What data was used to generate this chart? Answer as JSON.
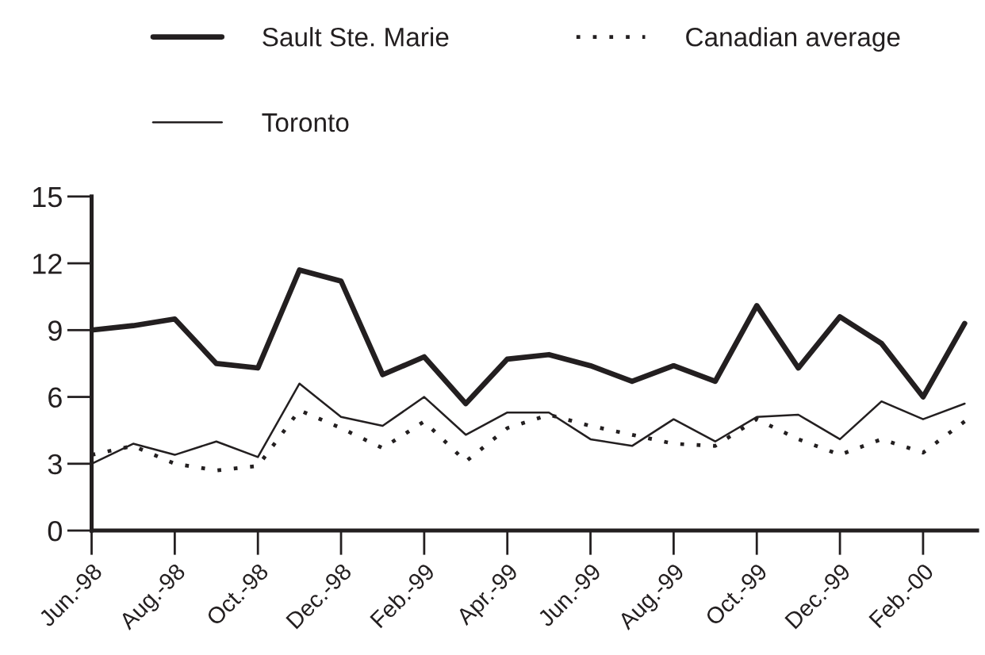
{
  "chart_data": {
    "type": "line",
    "categories": [
      "Jun.-98",
      null,
      "Aug.-98",
      null,
      "Oct.-98",
      null,
      "Dec.-98",
      null,
      "Feb.-99",
      null,
      "Apr.-99",
      null,
      "Jun.-99",
      null,
      "Aug.-99",
      null,
      "Oct.-99",
      null,
      "Dec.-99",
      null,
      "Feb.-00",
      null
    ],
    "series": [
      {
        "name": "Sault Ste. Marie",
        "color": "#231f20",
        "line_style": "solid",
        "values": [
          9.0,
          9.2,
          9.5,
          7.5,
          7.3,
          11.7,
          11.2,
          7.0,
          7.8,
          5.7,
          7.7,
          7.9,
          7.4,
          6.7,
          7.4,
          6.7,
          10.1,
          7.3,
          9.6,
          8.4,
          6.0,
          9.3
        ]
      },
      {
        "name": "Toronto",
        "color": "#231f20",
        "line_style": "solid",
        "values": [
          3.0,
          3.9,
          3.4,
          4.0,
          3.3,
          6.6,
          5.1,
          4.7,
          6.0,
          4.3,
          5.3,
          5.3,
          4.1,
          3.8,
          5.0,
          4.0,
          5.1,
          5.2,
          4.1,
          5.8,
          5.0,
          5.7
        ]
      },
      {
        "name": "Canadian average",
        "color": "#231f20",
        "line_style": "dotted",
        "values": [
          3.4,
          3.8,
          3.0,
          2.7,
          2.9,
          5.4,
          4.6,
          3.7,
          4.9,
          3.1,
          4.6,
          5.2,
          4.7,
          4.3,
          3.9,
          3.8,
          5.0,
          4.1,
          3.4,
          4.1,
          3.5,
          4.9
        ]
      }
    ],
    "ylim": [
      0,
      15
    ],
    "yticks": [
      0,
      3,
      6,
      9,
      12,
      15
    ],
    "legend": "top"
  }
}
